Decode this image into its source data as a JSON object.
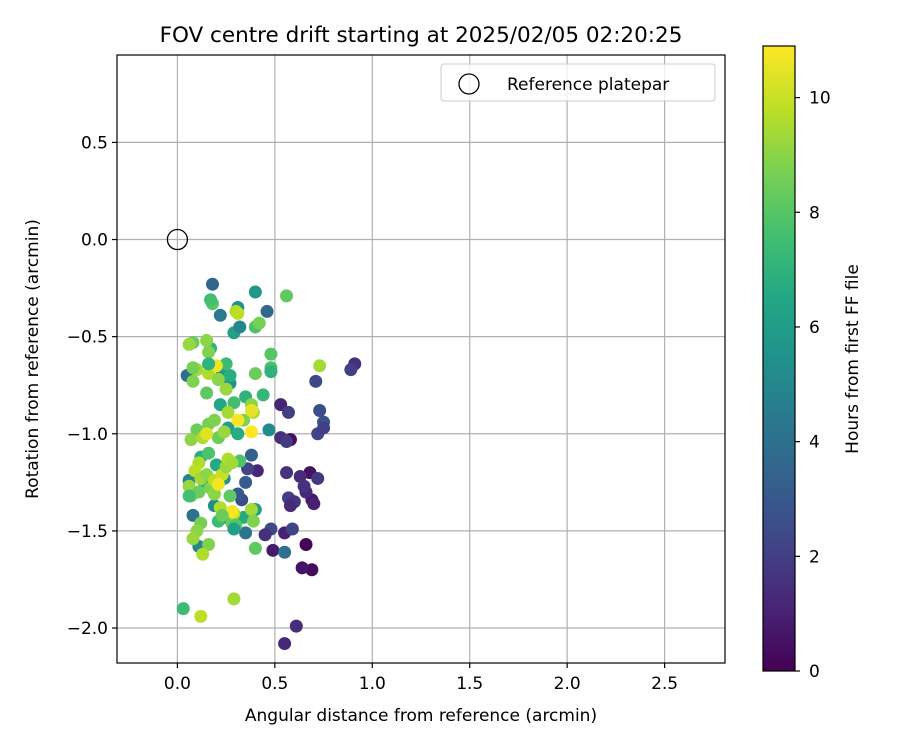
{
  "chart_data": {
    "type": "scatter",
    "title": "FOV centre drift starting at 2025/02/05 02:20:25",
    "xlabel": "Angular distance from reference (arcmin)",
    "ylabel": "Rotation from reference (arcmin)",
    "xlim": [
      -0.31,
      2.81
    ],
    "ylim": [
      -2.18,
      0.95
    ],
    "xticks": [
      0.0,
      0.5,
      1.0,
      1.5,
      2.0,
      2.5
    ],
    "xtick_labels": [
      "0.0",
      "0.5",
      "1.0",
      "1.5",
      "2.0",
      "2.5"
    ],
    "yticks": [
      0.5,
      0.0,
      -0.5,
      -1.0,
      -1.5,
      -2.0
    ],
    "ytick_labels": [
      "0.5",
      "0.0",
      "−0.5",
      "−1.0",
      "−1.5",
      "−2.0"
    ],
    "grid": true,
    "legend": {
      "position": "top-right",
      "entries": [
        "Reference platepar"
      ]
    },
    "reference_point": {
      "label": "Reference platepar",
      "x": 0.0,
      "y": 0.0,
      "marker": "open-circle"
    },
    "colorbar": {
      "label": "Hours from first FF file",
      "min": 0,
      "max": 10.9,
      "ticks": [
        0,
        2,
        4,
        6,
        8,
        10
      ],
      "tick_labels": [
        "0",
        "2",
        "4",
        "6",
        "8",
        "10"
      ],
      "colormap": "viridis"
    },
    "series": [
      {
        "points": [
          [
            0.66,
            -1.57,
            0.1
          ],
          [
            0.69,
            -1.7,
            0.3
          ],
          [
            0.55,
            -2.08,
            1.2
          ],
          [
            0.61,
            -1.99,
            1.4
          ],
          [
            0.64,
            -1.69,
            0.6
          ],
          [
            0.49,
            -1.6,
            0.8
          ],
          [
            0.58,
            -1.03,
            0.4
          ],
          [
            0.68,
            -1.2,
            0.5
          ],
          [
            0.69,
            -1.34,
            0.7
          ],
          [
            0.7,
            -1.36,
            1.0
          ],
          [
            0.66,
            -1.3,
            1.2
          ],
          [
            0.63,
            -1.22,
            1.4
          ],
          [
            0.65,
            -1.27,
            1.6
          ],
          [
            0.72,
            -1.23,
            1.8
          ],
          [
            0.55,
            -1.51,
            1.0
          ],
          [
            0.59,
            -1.49,
            2.2
          ],
          [
            0.48,
            -1.49,
            2.4
          ],
          [
            0.45,
            -1.52,
            1.5
          ],
          [
            0.56,
            -1.2,
            1.6
          ],
          [
            0.53,
            -1.02,
            1.5
          ],
          [
            0.57,
            -1.33,
            2.0
          ],
          [
            0.6,
            -1.35,
            1.7
          ],
          [
            0.58,
            -1.37,
            1.3
          ],
          [
            0.56,
            -1.04,
            1.9
          ],
          [
            0.53,
            -0.85,
            1.1
          ],
          [
            0.57,
            -0.89,
            2.0
          ],
          [
            0.41,
            -1.19,
            1.2
          ],
          [
            0.36,
            -1.18,
            2.2
          ],
          [
            0.71,
            -0.73,
            2.4
          ],
          [
            0.73,
            -0.88,
            2.6
          ],
          [
            0.75,
            -0.94,
            2.8
          ],
          [
            0.72,
            -1.0,
            2.2
          ],
          [
            0.75,
            -0.97,
            2.0
          ],
          [
            0.91,
            -0.64,
            1.5
          ],
          [
            0.89,
            -0.67,
            2.0
          ],
          [
            0.33,
            -1.34,
            2.6
          ],
          [
            0.31,
            -1.31,
            3.0
          ],
          [
            0.35,
            -1.25,
            3.2
          ],
          [
            0.38,
            -1.11,
            3.4
          ],
          [
            0.46,
            -0.37,
            3.6
          ],
          [
            0.4,
            -0.27,
            5.8
          ],
          [
            0.18,
            -0.23,
            3.6
          ],
          [
            0.22,
            -0.39,
            4.4
          ],
          [
            0.31,
            -0.35,
            5.5
          ],
          [
            0.29,
            -0.48,
            6.2
          ],
          [
            0.32,
            -0.45,
            5.0
          ],
          [
            0.05,
            -0.7,
            3.9
          ],
          [
            0.08,
            -1.42,
            4.0
          ],
          [
            0.06,
            -1.24,
            5.0
          ],
          [
            0.11,
            -1.58,
            5.0
          ],
          [
            0.24,
            -1.43,
            4.4
          ],
          [
            0.35,
            -1.51,
            4.2
          ],
          [
            0.55,
            -1.61,
            4.0
          ],
          [
            0.47,
            -0.98,
            5.2
          ],
          [
            0.29,
            -1.47,
            5.4
          ],
          [
            0.24,
            -1.23,
            5.6
          ],
          [
            0.19,
            -1.37,
            5.2
          ],
          [
            0.26,
            -0.97,
            6.0
          ],
          [
            0.22,
            -0.85,
            6.4
          ],
          [
            0.27,
            -0.74,
            5.6
          ],
          [
            0.21,
            -0.72,
            5.4
          ],
          [
            0.23,
            -0.68,
            5.8
          ],
          [
            0.17,
            -0.56,
            7.0
          ],
          [
            0.12,
            -1.12,
            6.8
          ],
          [
            0.14,
            -1.26,
            7.2
          ],
          [
            0.2,
            -1.16,
            6.6
          ],
          [
            0.21,
            -1.45,
            7.4
          ],
          [
            0.31,
            -1.0,
            6.7
          ],
          [
            0.32,
            -1.14,
            7.8
          ],
          [
            0.34,
            -1.43,
            6.6
          ],
          [
            0.4,
            -1.39,
            6.0
          ],
          [
            0.44,
            -0.8,
            7.2
          ],
          [
            0.35,
            -0.81,
            7.0
          ],
          [
            0.29,
            -0.84,
            7.6
          ],
          [
            0.27,
            -0.7,
            6.8
          ],
          [
            0.25,
            -0.64,
            7.4
          ],
          [
            0.48,
            -0.59,
            8.0
          ],
          [
            0.48,
            -0.66,
            7.8
          ],
          [
            0.48,
            -0.68,
            7.0
          ],
          [
            0.4,
            -0.45,
            7.8
          ],
          [
            0.42,
            -0.43,
            8.6
          ],
          [
            0.03,
            -1.9,
            7.4
          ],
          [
            0.56,
            -0.29,
            8.2
          ],
          [
            0.18,
            -0.33,
            8.0
          ],
          [
            0.17,
            -0.31,
            7.6
          ],
          [
            0.08,
            -0.53,
            8.4
          ],
          [
            0.06,
            -0.54,
            9.2
          ],
          [
            0.15,
            -0.52,
            9.0
          ],
          [
            0.16,
            -0.58,
            8.8
          ],
          [
            0.1,
            -0.67,
            9.4
          ],
          [
            0.08,
            -0.66,
            8.6
          ],
          [
            0.08,
            -0.73,
            8.8
          ],
          [
            0.16,
            -0.69,
            9.6
          ],
          [
            0.15,
            -0.79,
            8.2
          ],
          [
            0.21,
            -0.72,
            9.0
          ],
          [
            0.25,
            -0.77,
            9.2
          ],
          [
            0.3,
            -0.37,
            9.6
          ],
          [
            0.4,
            -0.69,
            8.4
          ],
          [
            0.73,
            -0.65,
            9.4
          ],
          [
            0.1,
            -0.98,
            8.4
          ],
          [
            0.07,
            -1.03,
            9.0
          ],
          [
            0.13,
            -1.02,
            9.6
          ],
          [
            0.16,
            -0.95,
            8.6
          ],
          [
            0.19,
            -0.93,
            8.8
          ],
          [
            0.21,
            -1.02,
            8.4
          ],
          [
            0.24,
            -0.99,
            9.2
          ],
          [
            0.26,
            -0.89,
            9.4
          ],
          [
            0.34,
            -0.93,
            8.8
          ],
          [
            0.38,
            -0.85,
            9.0
          ],
          [
            0.39,
            -0.89,
            9.6
          ],
          [
            0.11,
            -1.15,
            9.6
          ],
          [
            0.09,
            -1.19,
            9.8
          ],
          [
            0.12,
            -1.23,
            9.4
          ],
          [
            0.06,
            -1.27,
            9.2
          ],
          [
            0.15,
            -1.21,
            9.0
          ],
          [
            0.17,
            -1.28,
            8.8
          ],
          [
            0.19,
            -1.24,
            9.8
          ],
          [
            0.23,
            -1.21,
            10.0
          ],
          [
            0.25,
            -1.17,
            9.2
          ],
          [
            0.26,
            -1.13,
            9.6
          ],
          [
            0.28,
            -1.15,
            9.4
          ],
          [
            0.07,
            -1.32,
            8.6
          ],
          [
            0.11,
            -1.3,
            8.4
          ],
          [
            0.19,
            -1.31,
            9.0
          ],
          [
            0.27,
            -1.32,
            8.2
          ],
          [
            0.22,
            -1.38,
            9.6
          ],
          [
            0.38,
            -1.39,
            9.4
          ],
          [
            0.39,
            -1.45,
            8.8
          ],
          [
            0.12,
            -1.46,
            8.6
          ],
          [
            0.1,
            -1.5,
            9.0
          ],
          [
            0.08,
            -1.54,
            9.2
          ],
          [
            0.28,
            -1.46,
            8.4
          ],
          [
            0.29,
            -1.41,
            9.8
          ],
          [
            0.16,
            -1.57,
            8.8
          ],
          [
            0.13,
            -1.62,
            9.6
          ],
          [
            0.4,
            -1.59,
            8.2
          ],
          [
            0.12,
            -1.94,
            9.8
          ],
          [
            0.29,
            -1.85,
            9.4
          ],
          [
            0.2,
            -0.65,
            10.6
          ],
          [
            0.31,
            -0.93,
            10.8
          ],
          [
            0.15,
            -1.0,
            10.4
          ],
          [
            0.38,
            -0.99,
            10.9
          ],
          [
            0.38,
            -0.88,
            10.5
          ],
          [
            0.21,
            -1.26,
            10.7
          ],
          [
            0.28,
            -1.4,
            10.8
          ],
          [
            0.31,
            -0.38,
            9.8
          ],
          [
            0.16,
            -1.1,
            7.8
          ],
          [
            0.3,
            -1.47,
            8.0
          ],
          [
            0.23,
            -1.42,
            8.4
          ],
          [
            0.29,
            -1.49,
            6.2
          ],
          [
            0.16,
            -0.64,
            7.0
          ],
          [
            0.06,
            -1.32,
            7.6
          ]
        ]
      }
    ]
  }
}
